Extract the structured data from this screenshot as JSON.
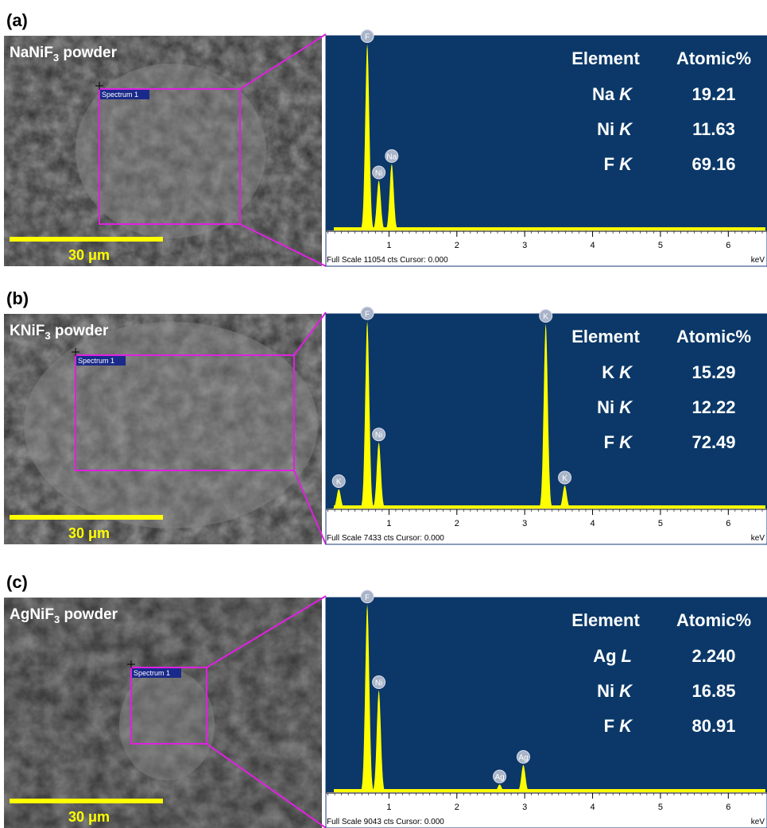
{
  "panels": [
    {
      "label": "(a)",
      "title": {
        "prefix": "NaNiF",
        "subscript": "3",
        "suffix": " powder"
      },
      "scale_bar": "30 μm",
      "site_label": "Spectrum 1",
      "spectrum": {
        "xlim": [
          0.07,
          6.5
        ],
        "ylim": [
          0,
          11054
        ],
        "xticks": [
          1,
          2,
          3,
          4,
          5,
          6
        ],
        "unit": "keV",
        "status": "Full Scale 11054 cts Cursor: 0.000",
        "peaks": [
          {
            "label": "F",
            "energy": 0.68,
            "counts": 10800
          },
          {
            "label": "Ni",
            "energy": 0.85,
            "counts": 2900
          },
          {
            "label": "Na",
            "energy": 1.04,
            "counts": 3850
          }
        ]
      },
      "table": {
        "header": [
          "Element",
          "Atomic%"
        ],
        "rows": [
          {
            "element": "Na",
            "line": "K",
            "atomic": "19.21"
          },
          {
            "element": "Ni",
            "line": "K",
            "atomic": "11.63"
          },
          {
            "element": "F",
            "line": "K",
            "atomic": "69.16"
          }
        ]
      }
    },
    {
      "label": "(b)",
      "title": {
        "prefix": "KNiF",
        "subscript": "3",
        "suffix": " powder"
      },
      "scale_bar": "30 μm",
      "site_label": "Spectrum 1",
      "spectrum": {
        "xlim": [
          0.07,
          6.5
        ],
        "ylim": [
          0,
          7433
        ],
        "xticks": [
          1,
          2,
          3,
          4,
          5,
          6
        ],
        "unit": "keV",
        "status": "Full Scale 7433 cts Cursor: 0.000",
        "peaks": [
          {
            "label": "K",
            "energy": 0.26,
            "counts": 760
          },
          {
            "label": "F",
            "energy": 0.68,
            "counts": 7300
          },
          {
            "label": "Ni",
            "energy": 0.85,
            "counts": 2580
          },
          {
            "label": "K",
            "energy": 3.31,
            "counts": 7200
          },
          {
            "label": "K",
            "energy": 3.59,
            "counts": 900
          }
        ]
      },
      "table": {
        "header": [
          "Element",
          "Atomic%"
        ],
        "rows": [
          {
            "element": "K",
            "line": "K",
            "atomic": "15.29"
          },
          {
            "element": "Ni",
            "line": "K",
            "atomic": "12.22"
          },
          {
            "element": "F",
            "line": "K",
            "atomic": "72.49"
          }
        ]
      }
    },
    {
      "label": "(c)",
      "title": {
        "prefix": "AgNiF",
        "subscript": "3",
        "suffix": " powder"
      },
      "scale_bar": "30 μm",
      "site_label": "Spectrum 1",
      "spectrum": {
        "xlim": [
          0.07,
          6.5
        ],
        "ylim": [
          0,
          9043
        ],
        "xticks": [
          1,
          2,
          3,
          4,
          5,
          6
        ],
        "unit": "keV",
        "status": "Full Scale 9043 cts Cursor: 0.000",
        "peaks": [
          {
            "label": "F",
            "energy": 0.68,
            "counts": 8900
          },
          {
            "label": "Ni",
            "energy": 0.85,
            "counts": 4840
          },
          {
            "label": "Ag",
            "energy": 2.63,
            "counts": 370
          },
          {
            "label": "Ag",
            "energy": 2.98,
            "counts": 1300
          }
        ]
      },
      "table": {
        "header": [
          "Element",
          "Atomic%"
        ],
        "rows": [
          {
            "element": "Ag",
            "line": "L",
            "atomic": "2.240"
          },
          {
            "element": "Ni",
            "line": "K",
            "atomic": "16.85"
          },
          {
            "element": "F",
            "line": "K",
            "atomic": "80.91"
          }
        ]
      }
    }
  ]
}
